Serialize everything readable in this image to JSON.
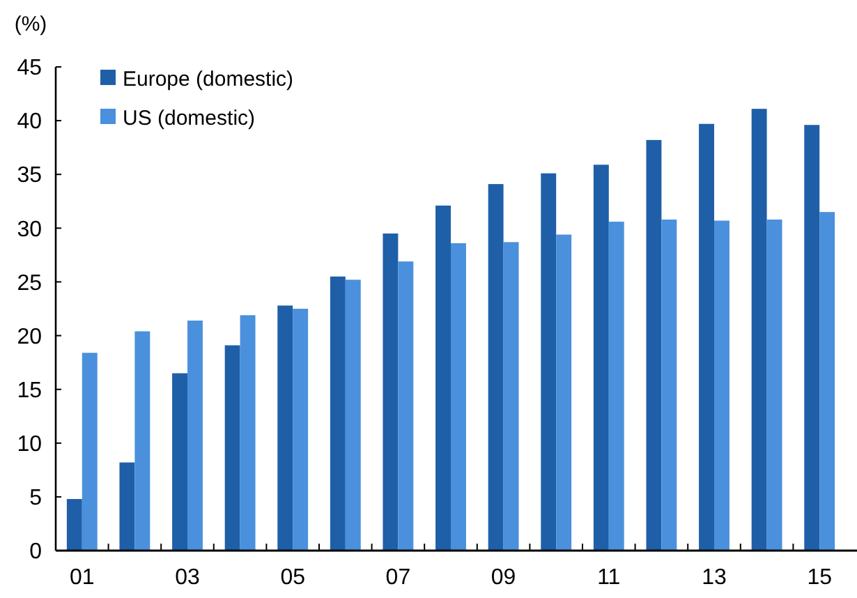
{
  "chart_data": {
    "type": "bar",
    "ylabel": "(%)",
    "categories": [
      "01",
      null,
      "03",
      null,
      "05",
      null,
      "07",
      null,
      "09",
      null,
      "11",
      null,
      "13",
      null,
      "15"
    ],
    "series": [
      {
        "name": "Europe (domestic)",
        "color": "#1f5fa8",
        "values": [
          4.8,
          8.2,
          16.5,
          19.1,
          22.8,
          25.5,
          29.5,
          32.1,
          34.1,
          35.1,
          35.9,
          38.2,
          39.7,
          41.1,
          39.6
        ]
      },
      {
        "name": "US (domestic)",
        "color": "#4a90dc",
        "values": [
          18.4,
          20.4,
          21.4,
          21.9,
          22.5,
          25.2,
          26.9,
          28.6,
          28.7,
          29.4,
          30.6,
          30.8,
          30.7,
          30.8,
          31.5
        ]
      }
    ],
    "ylim": [
      0,
      45
    ],
    "yticks": [
      0,
      5,
      10,
      15,
      20,
      25,
      30,
      35,
      40,
      45
    ],
    "grid": false,
    "legend": "top left"
  }
}
